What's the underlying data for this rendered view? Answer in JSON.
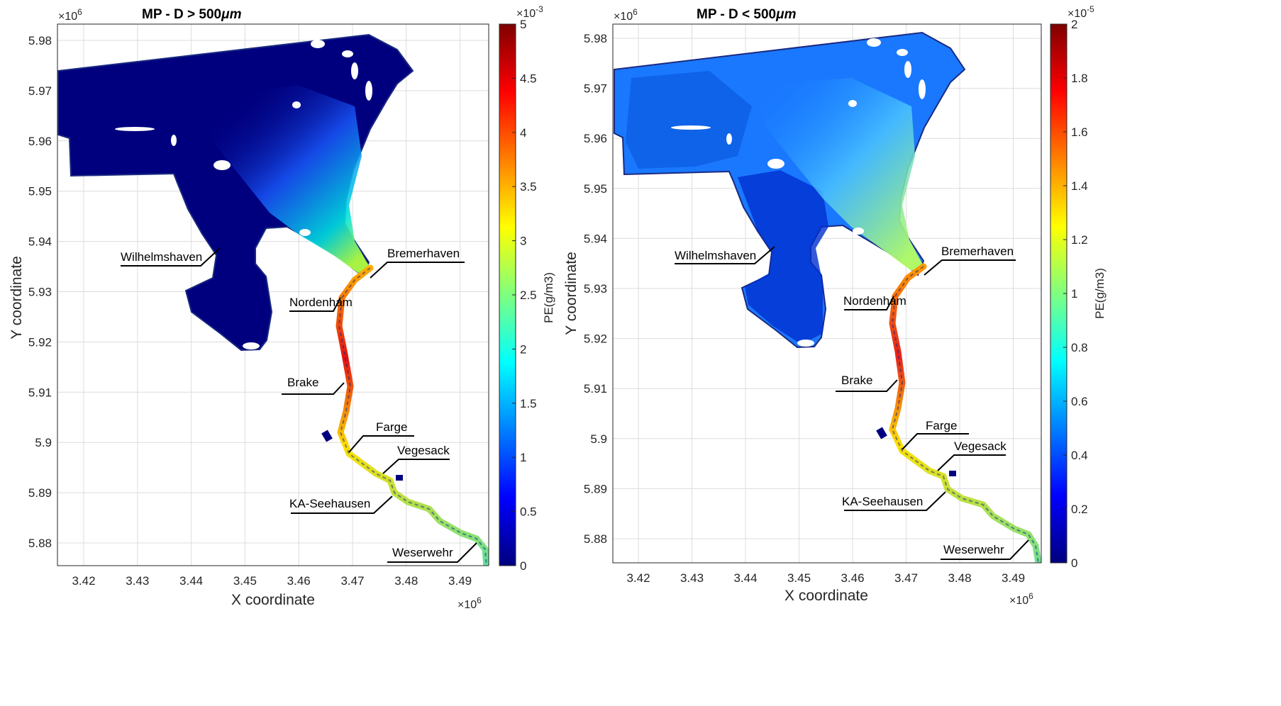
{
  "figure_title": "",
  "colors": {
    "colormap": [
      "#00007f",
      "#0000ff",
      "#007fff",
      "#00ffff",
      "#7fff7f",
      "#ffff00",
      "#ff7f00",
      "#ff0000",
      "#7f0000"
    ],
    "land": "#ffffff",
    "grid": "#dcdcdc"
  },
  "panels": [
    {
      "title": "MP - D > 500",
      "title_unit": "μm",
      "xlabel": "X coordinate",
      "ylabel": "Y coordinate",
      "x_exponent_label": "×10",
      "x_exponent": "6",
      "y_exponent_label": "×10",
      "y_exponent": "6",
      "x_ticks": [
        "3.42",
        "3.43",
        "3.44",
        "3.45",
        "3.46",
        "3.47",
        "3.48",
        "3.49"
      ],
      "y_ticks": [
        "5.88",
        "5.89",
        "5.9",
        "5.91",
        "5.92",
        "5.93",
        "5.94",
        "5.95",
        "5.96",
        "5.97",
        "5.98"
      ],
      "colorbar": {
        "label": "PE(g/m3)",
        "exponent_label": "×10",
        "exponent": "-3",
        "ticks": [
          "0",
          "0.5",
          "1",
          "1.5",
          "2",
          "2.5",
          "3",
          "3.5",
          "4",
          "4.5",
          "5"
        ],
        "range": [
          0,
          0.005
        ]
      },
      "places": [
        "Wilhelmshaven",
        "Bremerhaven",
        "Nordenham",
        "Brake",
        "Farge",
        "Vegesack",
        "KA-Seehausen",
        "Weserwehr"
      ]
    },
    {
      "title": "MP - D < 500",
      "title_unit": "μm",
      "xlabel": "X coordinate",
      "ylabel": "Y coordinate",
      "x_exponent_label": "×10",
      "x_exponent": "6",
      "y_exponent_label": "×10",
      "y_exponent": "6",
      "x_ticks": [
        "3.42",
        "3.43",
        "3.44",
        "3.45",
        "3.46",
        "3.47",
        "3.48",
        "3.49"
      ],
      "y_ticks": [
        "5.88",
        "5.89",
        "5.9",
        "5.91",
        "5.92",
        "5.93",
        "5.94",
        "5.95",
        "5.96",
        "5.97",
        "5.98"
      ],
      "colorbar": {
        "label": "PE(g/m3)",
        "exponent_label": "×10",
        "exponent": "-5",
        "ticks": [
          "0",
          "0.2",
          "0.4",
          "0.6",
          "0.8",
          "1",
          "1.2",
          "1.4",
          "1.6",
          "1.8",
          "2"
        ],
        "range": [
          0,
          2e-05
        ]
      },
      "places": [
        "Wilhelmshaven",
        "Bremerhaven",
        "Nordenham",
        "Brake",
        "Farge",
        "Vegesack",
        "KA-Seehausen",
        "Weserwehr"
      ]
    }
  ]
}
